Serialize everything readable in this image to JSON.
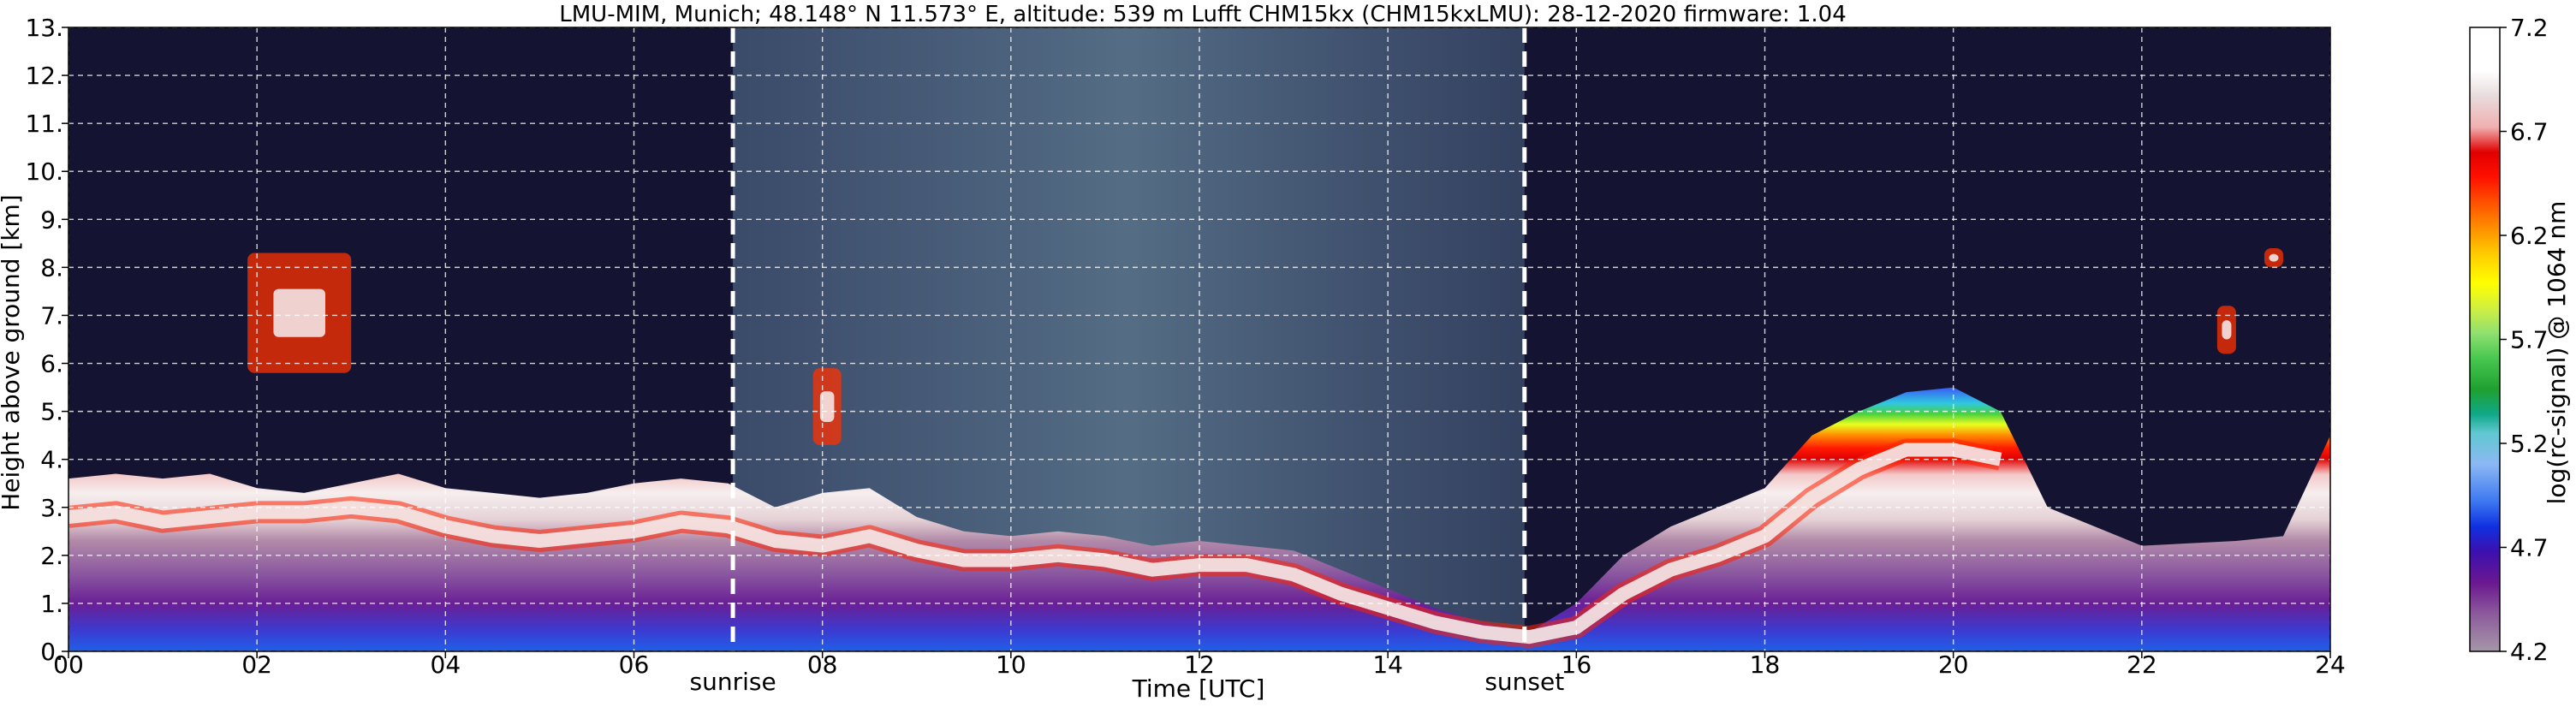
{
  "chart_data": {
    "type": "heatmap",
    "title": "LMU-MIM, Munich; 48.148° N 11.573° E, altitude: 539 m    Lufft CHM15kx (CHM15kxLMU): 28-12-2020    firmware: 1.04",
    "xlabel": "Time [UTC]",
    "ylabel": "Height above ground [km]",
    "xlim": [
      0,
      24
    ],
    "ylim": [
      0,
      13
    ],
    "x_ticks": [
      0,
      2,
      4,
      6,
      8,
      10,
      12,
      14,
      16,
      18,
      20,
      22,
      24
    ],
    "x_tick_labels": [
      "00",
      "02",
      "04",
      "06",
      "08",
      "10",
      "12",
      "14",
      "16",
      "18",
      "20",
      "22",
      "24"
    ],
    "y_ticks": [
      0,
      1,
      2,
      3,
      4,
      5,
      6,
      7,
      8,
      9,
      10,
      11,
      12,
      13
    ],
    "y_tick_labels": [
      "0.",
      "1.",
      "2.",
      "3.",
      "4.",
      "5.",
      "6.",
      "7.",
      "8.",
      "9.",
      "10.",
      "11.",
      "12.",
      "13."
    ],
    "grid": true,
    "annotations": [
      {
        "label": "sunrise",
        "x": 7.05
      },
      {
        "label": "sunset",
        "x": 15.45
      }
    ],
    "colorbar": {
      "label": "log(rc-signal) @ 1064 nm",
      "range": [
        4.2,
        7.2
      ],
      "ticks": [
        4.2,
        4.7,
        5.2,
        5.7,
        6.2,
        6.7,
        7.2
      ],
      "tick_labels": [
        "4.2",
        "4.7",
        "5.2",
        "5.7",
        "6.2",
        "6.7",
        "7.2"
      ]
    },
    "background_color": "#141432",
    "boundary_layer_top_km": [
      [
        0,
        3.6
      ],
      [
        0.5,
        3.7
      ],
      [
        1,
        3.6
      ],
      [
        1.5,
        3.7
      ],
      [
        2,
        3.4
      ],
      [
        2.5,
        3.3
      ],
      [
        3,
        3.5
      ],
      [
        3.5,
        3.7
      ],
      [
        4,
        3.4
      ],
      [
        4.5,
        3.3
      ],
      [
        5,
        3.2
      ],
      [
        5.5,
        3.3
      ],
      [
        6,
        3.5
      ],
      [
        6.5,
        3.6
      ],
      [
        7,
        3.5
      ],
      [
        7.5,
        3.0
      ],
      [
        8,
        3.3
      ],
      [
        8.5,
        3.4
      ],
      [
        9,
        2.8
      ],
      [
        9.5,
        2.5
      ],
      [
        10,
        2.4
      ],
      [
        10.5,
        2.5
      ],
      [
        11,
        2.4
      ],
      [
        11.5,
        2.2
      ],
      [
        12,
        2.3
      ],
      [
        12.5,
        2.2
      ],
      [
        13,
        2.1
      ],
      [
        13.5,
        1.7
      ],
      [
        14,
        1.3
      ],
      [
        14.5,
        0.9
      ],
      [
        15,
        0.6
      ],
      [
        15.5,
        0.4
      ],
      [
        16,
        1.0
      ],
      [
        16.5,
        2.0
      ],
      [
        17,
        2.6
      ],
      [
        17.5,
        3.0
      ],
      [
        18,
        3.4
      ],
      [
        18.5,
        4.5
      ],
      [
        19,
        5.0
      ],
      [
        19.5,
        5.4
      ],
      [
        20,
        5.5
      ],
      [
        20.5,
        5.0
      ],
      [
        21,
        3.0
      ],
      [
        22,
        2.2
      ],
      [
        23,
        2.3
      ],
      [
        23.5,
        2.4
      ],
      [
        24,
        4.5
      ]
    ],
    "max_signal_layer_km": [
      [
        0,
        2.8
      ],
      [
        0.5,
        2.9
      ],
      [
        1,
        2.7
      ],
      [
        1.5,
        2.8
      ],
      [
        2,
        2.9
      ],
      [
        2.5,
        2.9
      ],
      [
        3,
        3.0
      ],
      [
        3.5,
        2.9
      ],
      [
        4,
        2.6
      ],
      [
        4.5,
        2.4
      ],
      [
        5,
        2.3
      ],
      [
        5.5,
        2.4
      ],
      [
        6,
        2.5
      ],
      [
        6.5,
        2.7
      ],
      [
        7,
        2.6
      ],
      [
        7.5,
        2.3
      ],
      [
        8,
        2.2
      ],
      [
        8.5,
        2.4
      ],
      [
        9,
        2.1
      ],
      [
        9.5,
        1.9
      ],
      [
        10,
        1.9
      ],
      [
        10.5,
        2.0
      ],
      [
        11,
        1.9
      ],
      [
        11.5,
        1.7
      ],
      [
        12,
        1.8
      ],
      [
        12.5,
        1.8
      ],
      [
        13,
        1.6
      ],
      [
        13.5,
        1.2
      ],
      [
        14,
        0.9
      ],
      [
        14.5,
        0.6
      ],
      [
        15,
        0.4
      ],
      [
        15.5,
        0.3
      ],
      [
        16,
        0.5
      ],
      [
        16.5,
        1.2
      ],
      [
        17,
        1.7
      ],
      [
        17.5,
        2.0
      ],
      [
        18,
        2.4
      ],
      [
        18.5,
        3.2
      ],
      [
        19,
        3.8
      ],
      [
        19.5,
        4.2
      ],
      [
        20,
        4.2
      ],
      [
        20.5,
        4.0
      ]
    ],
    "elevated_layers": [
      {
        "x_start": 1.9,
        "x_end": 3.0,
        "y_bottom_km": 5.8,
        "y_top_km": 8.3
      },
      {
        "x_start": 7.9,
        "x_end": 8.2,
        "y_bottom_km": 4.3,
        "y_top_km": 5.9
      },
      {
        "x_start": 22.8,
        "x_end": 23.0,
        "y_bottom_km": 6.2,
        "y_top_km": 7.2
      },
      {
        "x_start": 23.3,
        "x_end": 23.5,
        "y_bottom_km": 8.0,
        "y_top_km": 8.4
      }
    ]
  }
}
